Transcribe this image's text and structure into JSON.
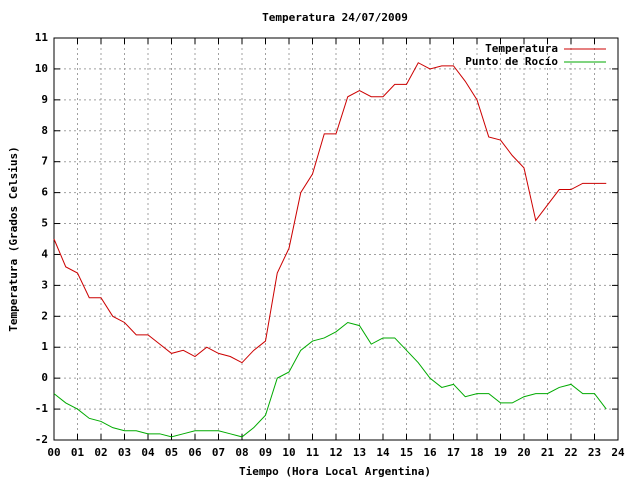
{
  "chart_data": {
    "type": "line",
    "title": "Temperatura 24/07/2009",
    "x_label": "Tiempo (Hora Local Argentina)",
    "y_label": "Temperatura (Grados Celsius)",
    "x": [
      0,
      0.5,
      1,
      1.5,
      2,
      2.5,
      3,
      3.5,
      4,
      4.5,
      5,
      5.5,
      6,
      6.5,
      7,
      7.5,
      8,
      8.5,
      9,
      9.5,
      10,
      10.5,
      11,
      11.5,
      12,
      12.5,
      13,
      13.5,
      14,
      14.5,
      15,
      15.5,
      16,
      16.5,
      17,
      17.5,
      18,
      18.5,
      19,
      19.5,
      20,
      20.5,
      21,
      21.5,
      22,
      22.5,
      23,
      23.5
    ],
    "series": [
      {
        "name": "Temperatura",
        "color": "#cc0000",
        "values": [
          4.5,
          3.6,
          3.4,
          2.6,
          2.6,
          2.0,
          1.8,
          1.4,
          1.4,
          1.1,
          0.8,
          0.9,
          0.7,
          1.0,
          0.8,
          0.7,
          0.5,
          0.9,
          1.2,
          3.4,
          4.2,
          6.0,
          6.6,
          7.9,
          7.9,
          9.1,
          9.3,
          9.1,
          9.1,
          9.5,
          9.5,
          10.2,
          10.0,
          10.1,
          10.1,
          9.6,
          9.0,
          7.8,
          7.7,
          7.2,
          6.8,
          5.1,
          5.6,
          6.1,
          6.1,
          6.3,
          6.3,
          6.3
        ]
      },
      {
        "name": "Punto de Rocío",
        "color": "#00aa00",
        "values": [
          -0.5,
          -0.8,
          -1.0,
          -1.3,
          -1.4,
          -1.6,
          -1.7,
          -1.7,
          -1.8,
          -1.8,
          -1.9,
          -1.8,
          -1.7,
          -1.7,
          -1.7,
          -1.8,
          -1.9,
          -1.6,
          -1.2,
          0.0,
          0.2,
          0.9,
          1.2,
          1.3,
          1.5,
          1.8,
          1.7,
          1.1,
          1.3,
          1.3,
          0.9,
          0.5,
          0.0,
          -0.3,
          -0.2,
          -0.6,
          -0.5,
          -0.5,
          -0.8,
          -0.8,
          -0.6,
          -0.5,
          -0.5,
          -0.3,
          -0.2,
          -0.5,
          -0.5,
          -1.0
        ]
      }
    ],
    "xlim": [
      0,
      24
    ],
    "xticks": [
      {
        "value": 0,
        "label": "00"
      },
      {
        "value": 1,
        "label": "01"
      },
      {
        "value": 2,
        "label": "02"
      },
      {
        "value": 3,
        "label": "03"
      },
      {
        "value": 4,
        "label": "04"
      },
      {
        "value": 5,
        "label": "05"
      },
      {
        "value": 6,
        "label": "06"
      },
      {
        "value": 7,
        "label": "07"
      },
      {
        "value": 8,
        "label": "08"
      },
      {
        "value": 9,
        "label": "09"
      },
      10,
      11,
      12,
      13,
      14,
      15,
      16,
      17,
      18,
      19,
      20,
      21,
      22,
      23,
      24
    ],
    "ylim": [
      -2,
      11
    ],
    "yticks": [
      -2,
      -1,
      0,
      1,
      2,
      3,
      4,
      5,
      6,
      7,
      8,
      9,
      10,
      11
    ],
    "grid": true,
    "legend": "top-right"
  }
}
